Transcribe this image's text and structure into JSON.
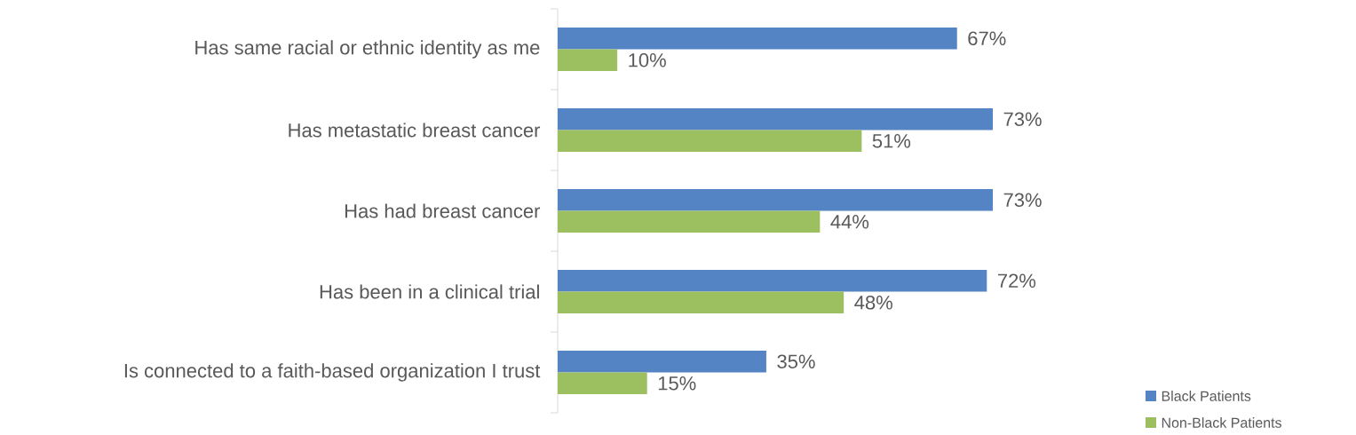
{
  "chart_data": {
    "type": "bar",
    "orientation": "horizontal",
    "categories": [
      "Has same racial or ethnic identity as me",
      "Has metastatic breast cancer",
      "Has had breast cancer",
      "Has been in a clinical trial",
      "Is connected to a faith-based organization I trust"
    ],
    "series": [
      {
        "name": "Black Patients",
        "color": "#5584c4",
        "values": [
          67,
          73,
          73,
          72,
          35
        ],
        "value_labels": [
          "67%",
          "73%",
          "73%",
          "72%",
          "35%"
        ]
      },
      {
        "name": "Non-Black Patients",
        "color": "#9cbf5f",
        "values": [
          10,
          51,
          44,
          48,
          15
        ],
        "value_labels": [
          "10%",
          "51%",
          "44%",
          "48%",
          "15%"
        ]
      }
    ],
    "legend": "bottom right"
  }
}
